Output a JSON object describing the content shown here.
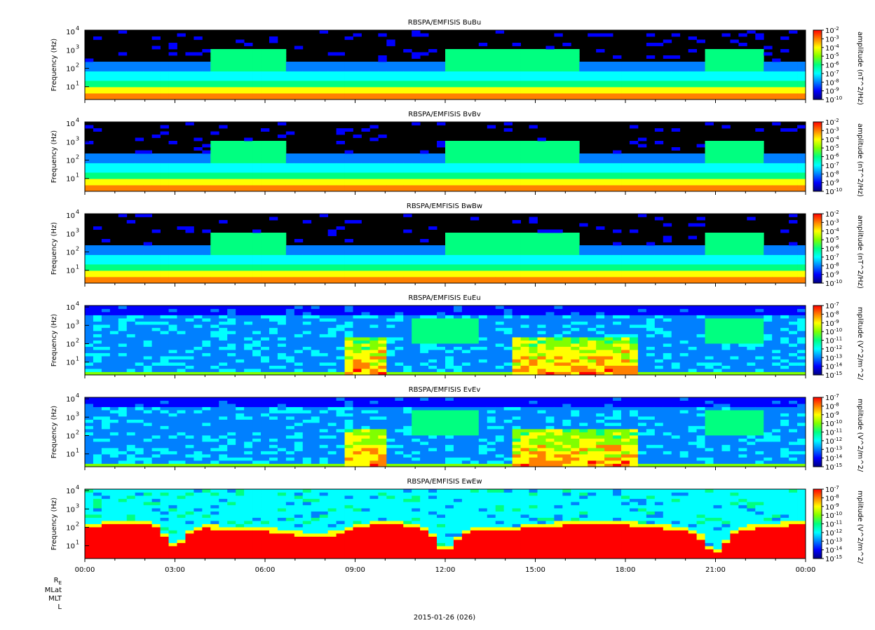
{
  "figure": {
    "date_label": "2015-01-26 (026)",
    "ephemeris_labels": [
      "R",
      "MLat",
      "MLT",
      "L"
    ],
    "ephemeris_subscript": "E"
  },
  "colors": {
    "background": "#000000",
    "colormap": [
      "#00007f",
      "#0000ff",
      "#0080ff",
      "#00ffff",
      "#00ff80",
      "#80ff00",
      "#ffff00",
      "#ff8000",
      "#ff0000"
    ]
  },
  "chart_data": [
    {
      "type": "heatmap",
      "title": "RBSPA/EMFISIS  BuBu",
      "ylabel": "Frequency (Hz)",
      "yscale": "log",
      "ylim": [
        2,
        12000
      ],
      "yticks": [
        "10",
        "10",
        "10",
        "10"
      ],
      "ytick_exponents": [
        "1",
        "2",
        "3",
        "4"
      ],
      "xlim": [
        "00:00",
        "00:00"
      ],
      "xticks": [
        "00:00",
        "03:00",
        "06:00",
        "09:00",
        "12:00",
        "15:00",
        "18:00",
        "21:00",
        "00:00"
      ],
      "colorbar": {
        "title": "amplitude (nT^2/Hz)",
        "scale": "log",
        "range": [
          1e-10,
          0.01
        ],
        "tick_base": "10",
        "tick_exponents": [
          "-2",
          "-3",
          "-4",
          "-5",
          "-6",
          "-7",
          "-8",
          "-9",
          "-10"
        ]
      }
    },
    {
      "type": "heatmap",
      "title": "RBSPA/EMFISIS  BvBv",
      "ylabel": "Frequency (Hz)",
      "yscale": "log",
      "ylim": [
        2,
        12000
      ],
      "yticks": [
        "10",
        "10",
        "10",
        "10"
      ],
      "ytick_exponents": [
        "1",
        "2",
        "3",
        "4"
      ],
      "xlim": [
        "00:00",
        "00:00"
      ],
      "xticks": [
        "00:00",
        "03:00",
        "06:00",
        "09:00",
        "12:00",
        "15:00",
        "18:00",
        "21:00",
        "00:00"
      ],
      "colorbar": {
        "title": "amplitude (nT^2/Hz)",
        "scale": "log",
        "range": [
          1e-10,
          0.01
        ],
        "tick_base": "10",
        "tick_exponents": [
          "-2",
          "-3",
          "-4",
          "-5",
          "-6",
          "-7",
          "-8",
          "-9",
          "-10"
        ]
      }
    },
    {
      "type": "heatmap",
      "title": "RBSPA/EMFISIS  BwBw",
      "ylabel": "Frequency (Hz)",
      "yscale": "log",
      "ylim": [
        2,
        12000
      ],
      "yticks": [
        "10",
        "10",
        "10",
        "10"
      ],
      "ytick_exponents": [
        "1",
        "2",
        "3",
        "4"
      ],
      "xlim": [
        "00:00",
        "00:00"
      ],
      "xticks": [
        "00:00",
        "03:00",
        "06:00",
        "09:00",
        "12:00",
        "15:00",
        "18:00",
        "21:00",
        "00:00"
      ],
      "colorbar": {
        "title": "amplitude (nT^2/Hz)",
        "scale": "log",
        "range": [
          1e-10,
          0.01
        ],
        "tick_base": "10",
        "tick_exponents": [
          "-2",
          "-3",
          "-4",
          "-5",
          "-6",
          "-7",
          "-8",
          "-9",
          "-10"
        ]
      }
    },
    {
      "type": "heatmap",
      "title": "RBSPA/EMFISIS  EuEu",
      "ylabel": "Frequency (Hz)",
      "yscale": "log",
      "ylim": [
        2,
        12000
      ],
      "yticks": [
        "10",
        "10",
        "10",
        "10"
      ],
      "ytick_exponents": [
        "1",
        "2",
        "3",
        "4"
      ],
      "xlim": [
        "00:00",
        "00:00"
      ],
      "xticks": [
        "00:00",
        "03:00",
        "06:00",
        "09:00",
        "12:00",
        "15:00",
        "18:00",
        "21:00",
        "00:00"
      ],
      "colorbar": {
        "title": "mplitude (V^2/m^2/",
        "scale": "log",
        "range": [
          1e-15,
          1e-07
        ],
        "tick_base": "10",
        "tick_exponents": [
          "-7",
          "-8",
          "-9",
          "-10",
          "-11",
          "-12",
          "-13",
          "-14",
          "-15"
        ]
      }
    },
    {
      "type": "heatmap",
      "title": "RBSPA/EMFISIS  EvEv",
      "ylabel": "Frequency (Hz)",
      "yscale": "log",
      "ylim": [
        2,
        12000
      ],
      "yticks": [
        "10",
        "10",
        "10",
        "10"
      ],
      "ytick_exponents": [
        "1",
        "2",
        "3",
        "4"
      ],
      "xlim": [
        "00:00",
        "00:00"
      ],
      "xticks": [
        "00:00",
        "03:00",
        "06:00",
        "09:00",
        "12:00",
        "15:00",
        "18:00",
        "21:00",
        "00:00"
      ],
      "colorbar": {
        "title": "mplitude (V^2/m^2/",
        "scale": "log",
        "range": [
          1e-15,
          1e-07
        ],
        "tick_base": "10",
        "tick_exponents": [
          "-7",
          "-8",
          "-9",
          "-10",
          "-11",
          "-12",
          "-13",
          "-14",
          "-15"
        ]
      }
    },
    {
      "type": "heatmap",
      "title": "RBSPA/EMFISIS  EwEw",
      "ylabel": "Frequency (Hz)",
      "yscale": "log",
      "ylim": [
        2,
        12000
      ],
      "yticks": [
        "10",
        "10",
        "10",
        "10"
      ],
      "ytick_exponents": [
        "1",
        "2",
        "3",
        "4"
      ],
      "xlim": [
        "00:00",
        "00:00"
      ],
      "xticks": [
        "00:00",
        "03:00",
        "06:00",
        "09:00",
        "12:00",
        "15:00",
        "18:00",
        "21:00",
        "00:00"
      ],
      "colorbar": {
        "title": "mplitude (V^2/m^2/",
        "scale": "log",
        "range": [
          1e-15,
          1e-07
        ],
        "tick_base": "10",
        "tick_exponents": [
          "-7",
          "-8",
          "-9",
          "-10",
          "-11",
          "-12",
          "-13",
          "-14",
          "-15"
        ]
      }
    }
  ]
}
